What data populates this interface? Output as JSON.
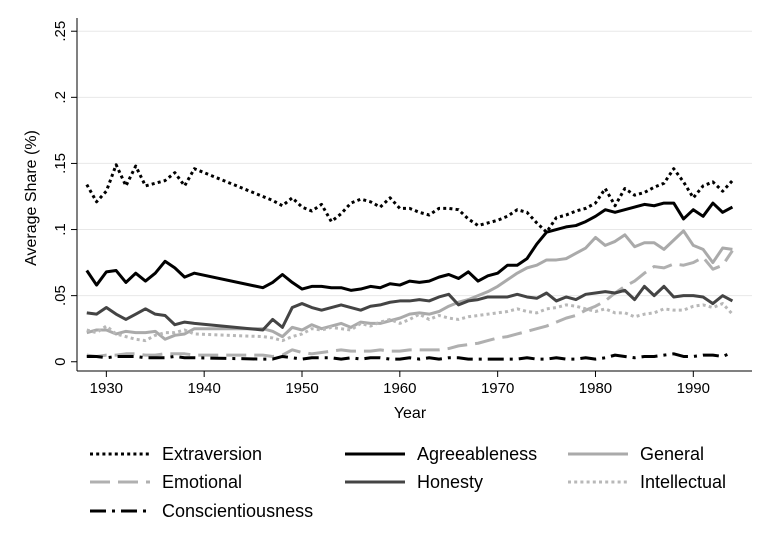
{
  "chart_data": {
    "type": "line",
    "title": "",
    "xlabel": "Year",
    "ylabel": "Average Share (%)",
    "xlim": [
      1927,
      1996
    ],
    "ylim": [
      -0.007,
      0.26
    ],
    "xticks": [
      1930,
      1940,
      1950,
      1960,
      1970,
      1980,
      1990
    ],
    "xtick_labels": [
      "1930",
      "1940",
      "1950",
      "1960",
      "1970",
      "1980",
      "1990"
    ],
    "yticks": [
      0,
      0.05,
      0.1,
      0.15,
      0.2,
      0.25
    ],
    "ytick_labels": [
      "0",
      ".05",
      ".1",
      ".15",
      ".2",
      ".25"
    ],
    "grid": true,
    "legend_position": "bottom",
    "series": [
      {
        "name": "Extraversion",
        "color": "#000000",
        "dash": "dot",
        "x": [
          1928,
          1929,
          1930,
          1931,
          1932,
          1933,
          1934,
          1935,
          1936,
          1937,
          1938,
          1939,
          1946,
          1947,
          1948,
          1949,
          1950,
          1951,
          1952,
          1953,
          1954,
          1955,
          1956,
          1957,
          1958,
          1959,
          1960,
          1961,
          1962,
          1963,
          1964,
          1965,
          1966,
          1967,
          1968,
          1969,
          1970,
          1971,
          1972,
          1973,
          1974,
          1975,
          1976,
          1977,
          1978,
          1979,
          1980,
          1981,
          1982,
          1983,
          1984,
          1985,
          1986,
          1987,
          1988,
          1989,
          1990,
          1991,
          1992,
          1993,
          1994
        ],
        "y": [
          0.134,
          0.121,
          0.129,
          0.149,
          0.133,
          0.148,
          0.133,
          0.135,
          0.137,
          0.143,
          0.133,
          0.146,
          0.125,
          0.122,
          0.118,
          0.124,
          0.117,
          0.114,
          0.119,
          0.106,
          0.112,
          0.12,
          0.123,
          0.121,
          0.117,
          0.124,
          0.116,
          0.116,
          0.113,
          0.111,
          0.116,
          0.116,
          0.115,
          0.108,
          0.103,
          0.105,
          0.107,
          0.11,
          0.115,
          0.113,
          0.105,
          0.098,
          0.109,
          0.111,
          0.114,
          0.116,
          0.12,
          0.131,
          0.118,
          0.131,
          0.126,
          0.128,
          0.132,
          0.135,
          0.146,
          0.136,
          0.124,
          0.133,
          0.136,
          0.129,
          0.137
        ]
      },
      {
        "name": "Agreeableness",
        "color": "#000000",
        "dash": "solid",
        "x": [
          1928,
          1929,
          1930,
          1931,
          1932,
          1933,
          1934,
          1935,
          1936,
          1937,
          1938,
          1939,
          1946,
          1947,
          1948,
          1949,
          1950,
          1951,
          1952,
          1953,
          1954,
          1955,
          1956,
          1957,
          1958,
          1959,
          1960,
          1961,
          1962,
          1963,
          1964,
          1965,
          1966,
          1967,
          1968,
          1969,
          1970,
          1971,
          1972,
          1973,
          1974,
          1975,
          1976,
          1977,
          1978,
          1979,
          1980,
          1981,
          1982,
          1983,
          1984,
          1985,
          1986,
          1987,
          1988,
          1989,
          1990,
          1991,
          1992,
          1993,
          1994
        ],
        "y": [
          0.069,
          0.058,
          0.068,
          0.069,
          0.06,
          0.067,
          0.061,
          0.067,
          0.076,
          0.071,
          0.064,
          0.067,
          0.056,
          0.06,
          0.066,
          0.06,
          0.055,
          0.057,
          0.057,
          0.056,
          0.056,
          0.054,
          0.055,
          0.057,
          0.056,
          0.059,
          0.058,
          0.061,
          0.06,
          0.061,
          0.064,
          0.066,
          0.063,
          0.068,
          0.061,
          0.065,
          0.067,
          0.073,
          0.073,
          0.078,
          0.089,
          0.098,
          0.1,
          0.102,
          0.103,
          0.106,
          0.11,
          0.115,
          0.113,
          0.115,
          0.117,
          0.119,
          0.118,
          0.12,
          0.12,
          0.108,
          0.115,
          0.11,
          0.12,
          0.113,
          0.117
        ]
      },
      {
        "name": "General",
        "color": "#aaaaaa",
        "dash": "solid",
        "x": [
          1928,
          1929,
          1930,
          1931,
          1932,
          1933,
          1934,
          1935,
          1936,
          1937,
          1938,
          1939,
          1946,
          1947,
          1948,
          1949,
          1950,
          1951,
          1952,
          1953,
          1954,
          1955,
          1956,
          1957,
          1958,
          1959,
          1960,
          1961,
          1962,
          1963,
          1964,
          1965,
          1966,
          1967,
          1968,
          1969,
          1970,
          1971,
          1972,
          1973,
          1974,
          1975,
          1976,
          1977,
          1978,
          1979,
          1980,
          1981,
          1982,
          1983,
          1984,
          1985,
          1986,
          1987,
          1988,
          1989,
          1990,
          1991,
          1992,
          1993,
          1994
        ],
        "y": [
          0.022,
          0.024,
          0.024,
          0.021,
          0.023,
          0.022,
          0.022,
          0.023,
          0.017,
          0.02,
          0.021,
          0.025,
          0.025,
          0.023,
          0.019,
          0.026,
          0.024,
          0.028,
          0.025,
          0.027,
          0.029,
          0.026,
          0.03,
          0.029,
          0.029,
          0.031,
          0.033,
          0.036,
          0.037,
          0.036,
          0.038,
          0.042,
          0.045,
          0.047,
          0.05,
          0.053,
          0.057,
          0.062,
          0.067,
          0.071,
          0.073,
          0.077,
          0.077,
          0.078,
          0.082,
          0.086,
          0.094,
          0.088,
          0.091,
          0.096,
          0.087,
          0.09,
          0.09,
          0.085,
          0.092,
          0.099,
          0.088,
          0.085,
          0.075,
          0.086,
          0.085
        ]
      },
      {
        "name": "Emotional",
        "color": "#b0b0b0",
        "dash": "longdash",
        "x": [
          1928,
          1929,
          1930,
          1931,
          1932,
          1933,
          1934,
          1935,
          1936,
          1937,
          1938,
          1939,
          1946,
          1947,
          1948,
          1949,
          1950,
          1951,
          1952,
          1953,
          1954,
          1955,
          1956,
          1957,
          1958,
          1959,
          1960,
          1961,
          1962,
          1963,
          1964,
          1965,
          1966,
          1967,
          1968,
          1969,
          1970,
          1971,
          1972,
          1973,
          1974,
          1975,
          1976,
          1977,
          1978,
          1979,
          1980,
          1981,
          1982,
          1983,
          1984,
          1985,
          1986,
          1987,
          1988,
          1989,
          1990,
          1991,
          1992,
          1993,
          1994
        ],
        "y": [
          0.005,
          0.004,
          0.005,
          0.005,
          0.006,
          0.006,
          0.005,
          0.005,
          0.006,
          0.006,
          0.006,
          0.005,
          0.005,
          0.004,
          0.005,
          0.009,
          0.007,
          0.006,
          0.007,
          0.008,
          0.009,
          0.008,
          0.008,
          0.008,
          0.009,
          0.008,
          0.008,
          0.009,
          0.009,
          0.009,
          0.009,
          0.01,
          0.012,
          0.013,
          0.014,
          0.016,
          0.018,
          0.019,
          0.021,
          0.023,
          0.025,
          0.027,
          0.03,
          0.033,
          0.035,
          0.039,
          0.042,
          0.046,
          0.052,
          0.057,
          0.061,
          0.067,
          0.072,
          0.071,
          0.074,
          0.073,
          0.075,
          0.079,
          0.07,
          0.073,
          0.084
        ]
      },
      {
        "name": "Honesty",
        "color": "#444444",
        "dash": "solid",
        "x": [
          1928,
          1929,
          1930,
          1931,
          1932,
          1933,
          1934,
          1935,
          1936,
          1937,
          1938,
          1939,
          1946,
          1947,
          1948,
          1949,
          1950,
          1951,
          1952,
          1953,
          1954,
          1955,
          1956,
          1957,
          1958,
          1959,
          1960,
          1961,
          1962,
          1963,
          1964,
          1965,
          1966,
          1967,
          1968,
          1969,
          1970,
          1971,
          1972,
          1973,
          1974,
          1975,
          1976,
          1977,
          1978,
          1979,
          1980,
          1981,
          1982,
          1983,
          1984,
          1985,
          1986,
          1987,
          1988,
          1989,
          1990,
          1991,
          1992,
          1993,
          1994
        ],
        "y": [
          0.037,
          0.036,
          0.041,
          0.036,
          0.032,
          0.036,
          0.04,
          0.036,
          0.035,
          0.028,
          0.03,
          0.029,
          0.024,
          0.032,
          0.026,
          0.041,
          0.044,
          0.041,
          0.039,
          0.041,
          0.043,
          0.041,
          0.039,
          0.042,
          0.043,
          0.045,
          0.046,
          0.046,
          0.047,
          0.046,
          0.049,
          0.051,
          0.043,
          0.046,
          0.047,
          0.049,
          0.049,
          0.049,
          0.051,
          0.049,
          0.048,
          0.052,
          0.046,
          0.049,
          0.047,
          0.051,
          0.052,
          0.053,
          0.052,
          0.054,
          0.047,
          0.057,
          0.05,
          0.057,
          0.049,
          0.05,
          0.05,
          0.049,
          0.044,
          0.05,
          0.046
        ]
      },
      {
        "name": "Intellectual",
        "color": "#b8b8b8",
        "dash": "dot",
        "x": [
          1928,
          1929,
          1930,
          1931,
          1932,
          1933,
          1934,
          1935,
          1936,
          1937,
          1938,
          1939,
          1946,
          1947,
          1948,
          1949,
          1950,
          1951,
          1952,
          1953,
          1954,
          1955,
          1956,
          1957,
          1958,
          1959,
          1960,
          1961,
          1962,
          1963,
          1964,
          1965,
          1966,
          1967,
          1968,
          1969,
          1970,
          1971,
          1972,
          1973,
          1974,
          1975,
          1976,
          1977,
          1978,
          1979,
          1980,
          1981,
          1982,
          1983,
          1984,
          1985,
          1986,
          1987,
          1988,
          1989,
          1990,
          1991,
          1992,
          1993,
          1994
        ],
        "y": [
          0.024,
          0.022,
          0.027,
          0.021,
          0.019,
          0.017,
          0.016,
          0.02,
          0.022,
          0.022,
          0.024,
          0.021,
          0.019,
          0.018,
          0.016,
          0.019,
          0.021,
          0.025,
          0.024,
          0.026,
          0.025,
          0.024,
          0.029,
          0.027,
          0.03,
          0.032,
          0.029,
          0.032,
          0.036,
          0.032,
          0.035,
          0.033,
          0.032,
          0.034,
          0.035,
          0.036,
          0.037,
          0.038,
          0.04,
          0.038,
          0.037,
          0.04,
          0.041,
          0.043,
          0.042,
          0.04,
          0.038,
          0.04,
          0.037,
          0.037,
          0.034,
          0.036,
          0.037,
          0.04,
          0.039,
          0.039,
          0.042,
          0.043,
          0.041,
          0.044,
          0.036
        ]
      },
      {
        "name": "Conscientiousness",
        "color": "#000000",
        "dash": "dashdot",
        "x": [
          1928,
          1929,
          1930,
          1931,
          1932,
          1933,
          1934,
          1935,
          1936,
          1937,
          1938,
          1939,
          1946,
          1947,
          1948,
          1949,
          1950,
          1951,
          1952,
          1953,
          1954,
          1955,
          1956,
          1957,
          1958,
          1959,
          1960,
          1961,
          1962,
          1963,
          1964,
          1965,
          1966,
          1967,
          1968,
          1969,
          1970,
          1971,
          1972,
          1973,
          1974,
          1975,
          1976,
          1977,
          1978,
          1979,
          1980,
          1981,
          1982,
          1983,
          1984,
          1985,
          1986,
          1987,
          1988,
          1989,
          1990,
          1991,
          1992,
          1993,
          1994
        ],
        "y": [
          0.004,
          0.004,
          0.003,
          0.004,
          0.004,
          0.004,
          0.003,
          0.003,
          0.003,
          0.004,
          0.003,
          0.003,
          0.002,
          0.002,
          0.004,
          0.003,
          0.002,
          0.003,
          0.003,
          0.003,
          0.002,
          0.003,
          0.002,
          0.003,
          0.003,
          0.002,
          0.002,
          0.003,
          0.002,
          0.003,
          0.002,
          0.003,
          0.003,
          0.002,
          0.002,
          0.002,
          0.002,
          0.002,
          0.002,
          0.003,
          0.002,
          0.002,
          0.003,
          0.002,
          0.002,
          0.003,
          0.002,
          0.003,
          0.005,
          0.004,
          0.003,
          0.004,
          0.004,
          0.005,
          0.006,
          0.004,
          0.004,
          0.005,
          0.005,
          0.004,
          0.007
        ]
      }
    ]
  }
}
